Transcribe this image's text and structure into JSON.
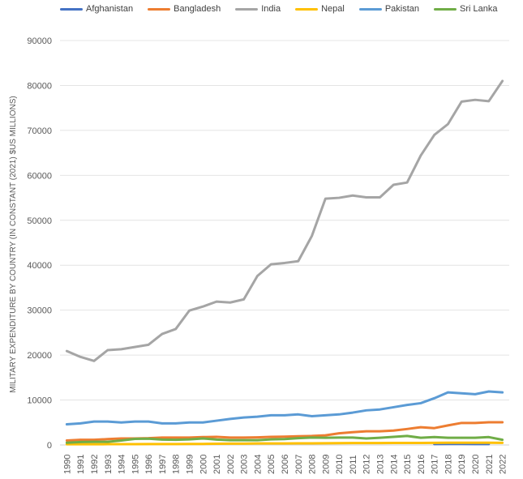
{
  "chart_data": {
    "type": "line",
    "title": "",
    "xlabel": "",
    "ylabel": "MILITARY EXPENDITURE BY COUNTRY  (IN CONSTANT (2021) $US MILLIONS)",
    "ylim": [
      0,
      90000
    ],
    "yticks": [
      "0",
      "10000",
      "20000",
      "30000",
      "40000",
      "50000",
      "60000",
      "70000",
      "80000",
      "90000"
    ],
    "grid": true,
    "legend_position": "top",
    "x": [
      "1990",
      "1991",
      "1992",
      "1993",
      "1994",
      "1995",
      "1996",
      "1997",
      "1998",
      "1999",
      "2000",
      "2001",
      "2002",
      "2003",
      "2004",
      "2005",
      "2006",
      "2007",
      "2008",
      "2009",
      "2010",
      "2011",
      "2012",
      "2013",
      "2014",
      "2015",
      "2016",
      "2017",
      "2018",
      "2019",
      "2020",
      "2021",
      "2022"
    ],
    "series": [
      {
        "name": "Afghanistan",
        "color": "#4472C4",
        "values": [
          null,
          null,
          null,
          null,
          null,
          null,
          null,
          null,
          null,
          null,
          null,
          null,
          null,
          null,
          null,
          null,
          null,
          null,
          null,
          null,
          null,
          null,
          null,
          null,
          null,
          null,
          null,
          200,
          220,
          230,
          200,
          210,
          null
        ]
      },
      {
        "name": "Bangladesh",
        "color": "#ED7D31",
        "values": [
          1000,
          1150,
          1150,
          1300,
          1450,
          1450,
          1500,
          1650,
          1650,
          1650,
          1750,
          1800,
          1650,
          1650,
          1700,
          1800,
          1850,
          1950,
          2000,
          2150,
          2600,
          2850,
          3050,
          3050,
          3200,
          3550,
          3950,
          3750,
          4350,
          4900,
          4900,
          5050,
          5050
        ]
      },
      {
        "name": "India",
        "color": "#A5A5A5",
        "values": [
          20900,
          19600,
          18700,
          21100,
          21300,
          21800,
          22300,
          24700,
          25800,
          29900,
          30800,
          31900,
          31700,
          32400,
          37600,
          40200,
          40500,
          40900,
          46500,
          54800,
          55000,
          55500,
          55100,
          55100,
          57900,
          58400,
          64400,
          69000,
          71400,
          76400,
          76800,
          76500,
          81000
        ]
      },
      {
        "name": "Nepal",
        "color": "#FFC000",
        "values": [
          150,
          160,
          160,
          170,
          180,
          190,
          200,
          210,
          210,
          220,
          230,
          260,
          290,
          300,
          330,
          330,
          340,
          360,
          350,
          380,
          400,
          420,
          420,
          430,
          440,
          450,
          460,
          480,
          490,
          500,
          500,
          500,
          480
        ]
      },
      {
        "name": "Pakistan",
        "color": "#5B9BD5",
        "values": [
          4600,
          4800,
          5200,
          5200,
          5000,
          5200,
          5200,
          4800,
          4800,
          5000,
          5000,
          5400,
          5800,
          6100,
          6300,
          6600,
          6600,
          6800,
          6400,
          6600,
          6800,
          7200,
          7700,
          7900,
          8400,
          8900,
          9300,
          10400,
          11700,
          11500,
          11300,
          11900,
          11700
        ]
      },
      {
        "name": "Sri Lanka",
        "color": "#70AD47",
        "values": [
          500,
          650,
          700,
          700,
          1000,
          1350,
          1400,
          1200,
          1150,
          1250,
          1450,
          1200,
          1050,
          1050,
          1050,
          1250,
          1300,
          1500,
          1650,
          1600,
          1650,
          1650,
          1450,
          1600,
          1800,
          2000,
          1600,
          1750,
          1600,
          1600,
          1600,
          1750,
          1150
        ]
      }
    ]
  }
}
